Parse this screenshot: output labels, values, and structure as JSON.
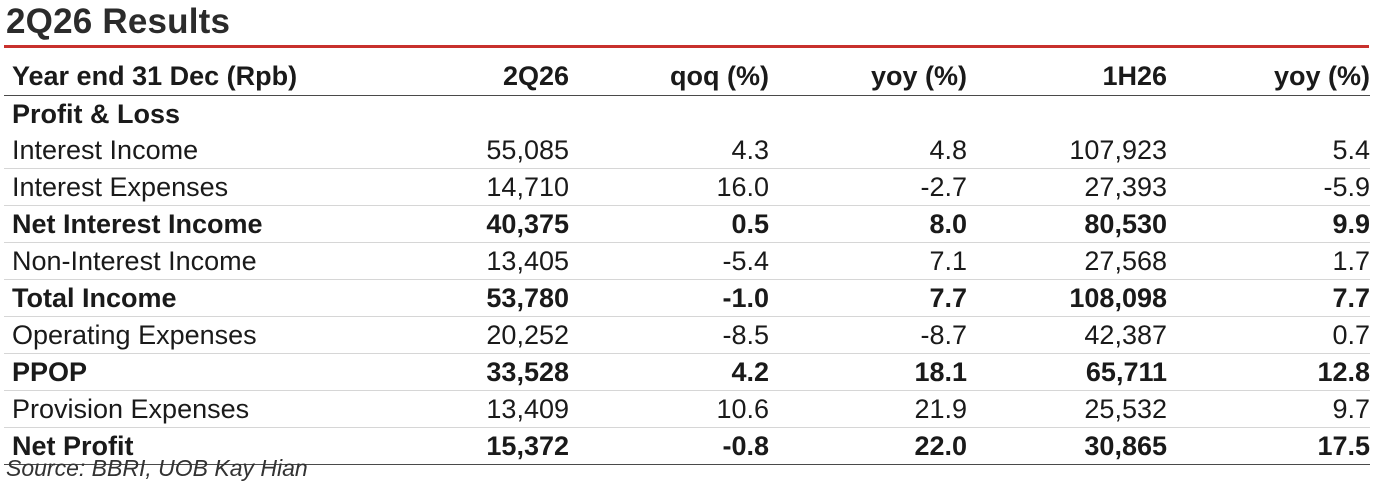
{
  "title": "2Q26 Results",
  "accent_color": "#c8312d",
  "table": {
    "headers": [
      "Year end 31 Dec (Rpb)",
      "2Q26",
      "qoq (%)",
      "yoy (%)",
      "1H26",
      "yoy (%)"
    ],
    "section_label": "Profit & Loss",
    "rows": [
      {
        "label": "Interest Income",
        "bold": false,
        "values": [
          "55,085",
          "4.3",
          "4.8",
          "107,923",
          "5.4"
        ]
      },
      {
        "label": "Interest Expenses",
        "bold": false,
        "values": [
          "14,710",
          "16.0",
          "-2.7",
          "27,393",
          "-5.9"
        ]
      },
      {
        "label": "Net Interest Income",
        "bold": true,
        "values": [
          "40,375",
          "0.5",
          "8.0",
          "80,530",
          "9.9"
        ]
      },
      {
        "label": "Non-Interest Income",
        "bold": false,
        "values": [
          "13,405",
          "-5.4",
          "7.1",
          "27,568",
          "1.7"
        ]
      },
      {
        "label": "Total Income",
        "bold": true,
        "values": [
          "53,780",
          "-1.0",
          "7.7",
          "108,098",
          "7.7"
        ]
      },
      {
        "label": "Operating Expenses",
        "bold": false,
        "values": [
          "20,252",
          "-8.5",
          "-8.7",
          "42,387",
          "0.7"
        ]
      },
      {
        "label": "PPOP",
        "bold": true,
        "values": [
          "33,528",
          "4.2",
          "18.1",
          "65,711",
          "12.8"
        ]
      },
      {
        "label": "Provision Expenses",
        "bold": false,
        "values": [
          "13,409",
          "10.6",
          "21.9",
          "25,532",
          "9.7"
        ]
      },
      {
        "label": "Net Profit",
        "bold": true,
        "values": [
          "15,372",
          "-0.8",
          "22.0",
          "30,865",
          "17.5"
        ]
      }
    ]
  },
  "source": "Source: BBRI, UOB Kay Hian"
}
